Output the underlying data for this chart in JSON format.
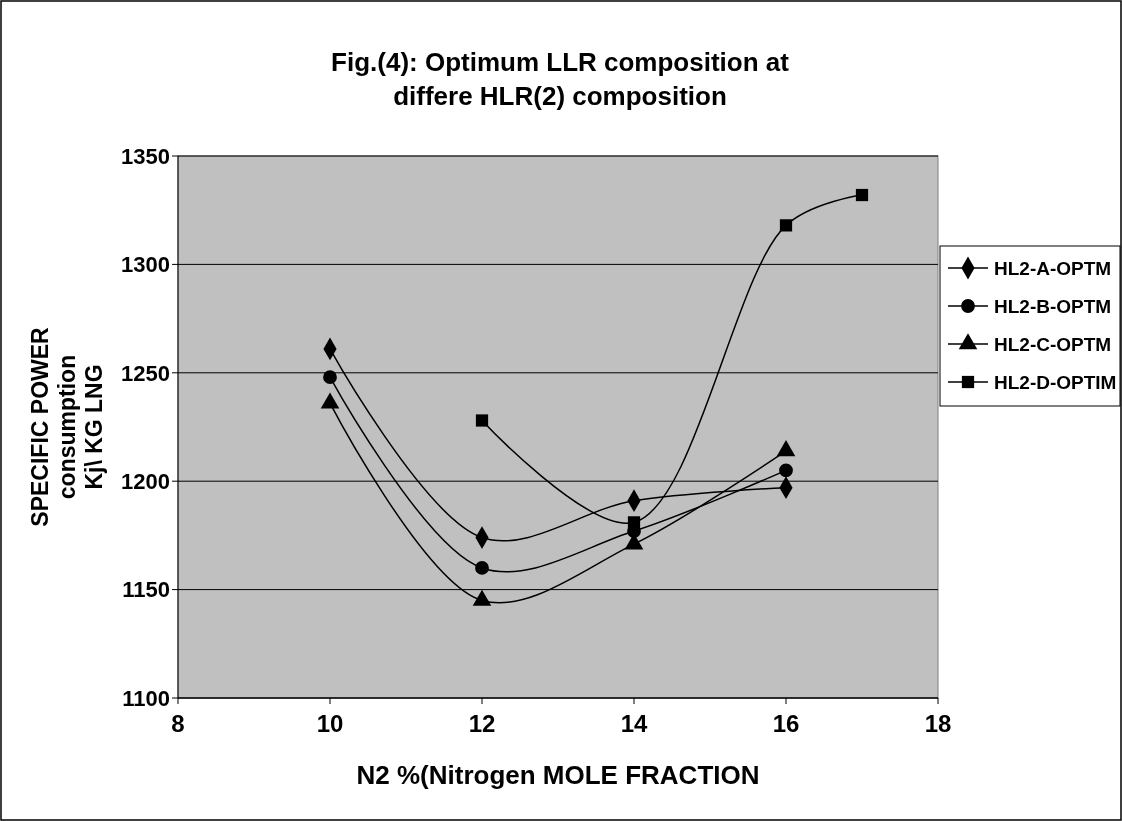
{
  "chart_data": {
    "type": "line",
    "title": "Fig.(4): Optimum LLR composition at differe HLR(2) composition",
    "xlabel": "N2 %(Nitrogen MOLE FRACTION",
    "ylabel": "SPECIFIC POWER consumption Kj\\ KG LNG",
    "x": [
      10,
      12,
      14,
      16
    ],
    "xlim": [
      8,
      18
    ],
    "xticks": [
      8,
      10,
      12,
      14,
      16,
      18
    ],
    "ylim": [
      1100,
      1350
    ],
    "yticks": [
      1100,
      1150,
      1200,
      1250,
      1300,
      1350
    ],
    "grid": "y",
    "legend": "right",
    "series": [
      {
        "name": "HL2-A-OPTM",
        "color": "#000000",
        "marker": "diamond",
        "values": [
          1261,
          1174,
          1191,
          1197
        ]
      },
      {
        "name": "HL2-B-OPTM",
        "color": "#000000",
        "marker": "circle",
        "values": [
          1248,
          1160,
          1177,
          1205
        ]
      },
      {
        "name": "HL2-C-OPTM",
        "color": "#000000",
        "marker": "triangle",
        "values": [
          1236,
          1145,
          1171,
          1214
        ]
      },
      {
        "name": "HL2-D-OPTIM",
        "color": "#000000",
        "marker": "square",
        "x": [
          12,
          14,
          16,
          17
        ],
        "values": [
          1228,
          1181,
          1318,
          1332
        ]
      }
    ]
  }
}
